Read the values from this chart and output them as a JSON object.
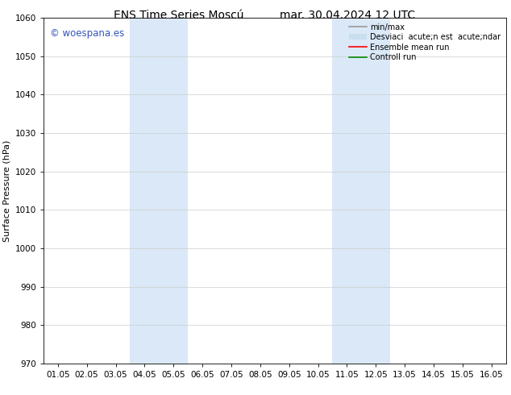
{
  "title_left": "ENS Time Series Moscú",
  "title_right": "mar. 30.04.2024 12 UTC",
  "ylabel": "Surface Pressure (hPa)",
  "ylim": [
    970,
    1060
  ],
  "yticks": [
    970,
    980,
    990,
    1000,
    1010,
    1020,
    1030,
    1040,
    1050,
    1060
  ],
  "xtick_labels": [
    "01.05",
    "02.05",
    "03.05",
    "04.05",
    "05.05",
    "06.05",
    "07.05",
    "08.05",
    "09.05",
    "10.05",
    "11.05",
    "12.05",
    "13.05",
    "14.05",
    "15.05",
    "16.05"
  ],
  "shaded_regions": [
    {
      "xmin": 3,
      "xmax": 5,
      "color": "#dae8f7"
    },
    {
      "xmin": 10,
      "xmax": 12,
      "color": "#dae8f7"
    }
  ],
  "watermark_text": "© woespana.es",
  "watermark_color": "#3355bb",
  "background_color": "#ffffff",
  "plot_bg_color": "#ffffff",
  "legend_label_minmax": "min/max",
  "legend_label_std": "Desviaci  acute;n est  acute;ndar",
  "legend_label_ensemble": "Ensemble mean run",
  "legend_label_control": "Controll run",
  "legend_color_minmax": "#999999",
  "legend_color_std": "#c8dff0",
  "legend_color_ensemble": "#ff0000",
  "legend_color_control": "#008800",
  "grid_color": "#cccccc",
  "spine_color": "#000000",
  "title_fontsize": 10,
  "tick_fontsize": 7.5,
  "ylabel_fontsize": 8,
  "watermark_fontsize": 8.5,
  "legend_fontsize": 7
}
